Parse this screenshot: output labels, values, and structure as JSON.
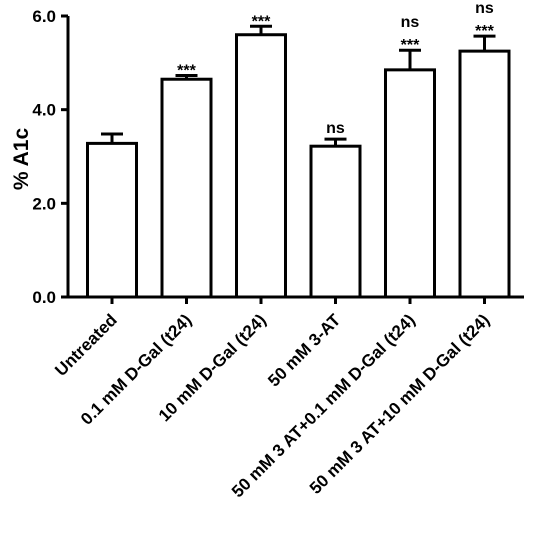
{
  "chart_data": {
    "type": "bar",
    "ylabel": "% A1c",
    "ylim": [
      0,
      6
    ],
    "yticks": [
      "0.0",
      "2.0",
      "4.0",
      "6.0"
    ],
    "ytick_values": [
      0,
      2,
      4,
      6
    ],
    "grid": false,
    "bar_fill": "#ffffff",
    "stroke_color": "#000000",
    "categories": [
      "Untreated",
      "0.1 mM D-Gal (t24)",
      "10 mM D-Gal (t24)",
      "50 mM 3-AT",
      "50 mM 3 AT+0.1 mM D-Gal (t24)",
      "50 mM 3 AT+10 mM D-Gal (t24)"
    ],
    "values": [
      3.28,
      4.65,
      5.6,
      3.22,
      4.85,
      5.25
    ],
    "errors": [
      0.2,
      0.08,
      0.18,
      0.15,
      0.42,
      0.32
    ],
    "annotations": [
      [],
      [
        "***"
      ],
      [
        "***"
      ],
      [
        "ns"
      ],
      [
        "ns",
        "***"
      ],
      [
        "ns",
        "***"
      ]
    ]
  }
}
